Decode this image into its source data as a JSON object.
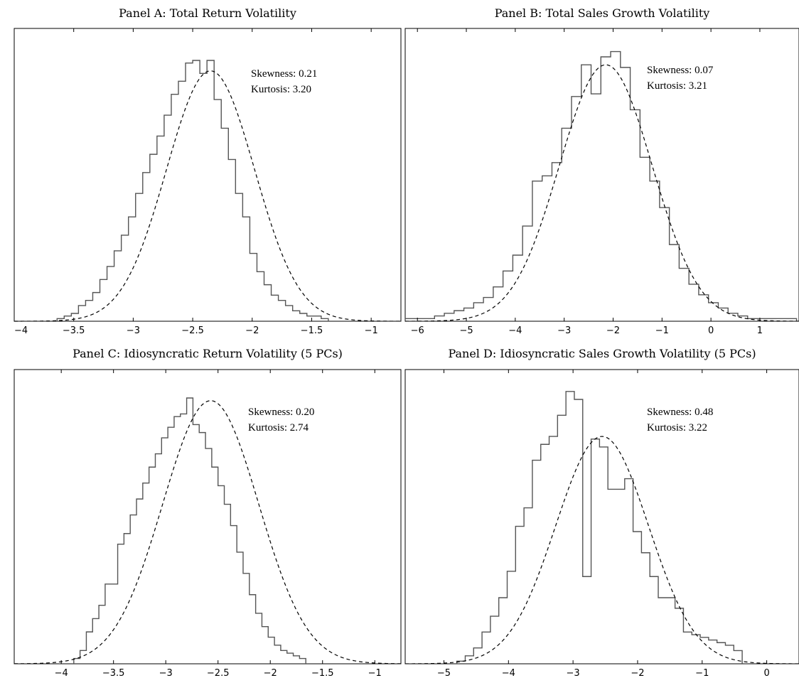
{
  "chart_data": [
    {
      "type": "histogram",
      "title": "Panel A: Total Return Volatility",
      "xlim": [
        -4,
        -0.75
      ],
      "xticks": [
        -4,
        -3.5,
        -3,
        -2.5,
        -2,
        -1.5,
        -1
      ],
      "xtick_labels": [
        "−4",
        "−3.5",
        "−3",
        "−2.5",
        "−2",
        "−1.5",
        "−1"
      ],
      "bin_start": -3.64,
      "bin_width": 0.06,
      "histogram": [
        0.01,
        0.02,
        0.03,
        0.06,
        0.08,
        0.11,
        0.16,
        0.21,
        0.27,
        0.33,
        0.4,
        0.49,
        0.57,
        0.64,
        0.71,
        0.79,
        0.87,
        0.92,
        0.99,
        1.0,
        0.95,
        1.0,
        0.85,
        0.74,
        0.62,
        0.49,
        0.4,
        0.26,
        0.19,
        0.14,
        0.1,
        0.08,
        0.06,
        0.04,
        0.03,
        0.02,
        0.02,
        0.01
      ],
      "fit": {
        "type": "normal",
        "mean": -2.35,
        "sd": 0.37,
        "peak": 0.96,
        "style": "dashed"
      },
      "annotations": {
        "skewness": "Skewness: 0.21",
        "kurtosis": "Kurtosis: 3.20"
      }
    },
    {
      "type": "histogram",
      "title": "Panel B: Total Sales Growth Volatility",
      "xlim": [
        -6.25,
        1.8
      ],
      "xticks": [
        -6,
        -5,
        -4,
        -3,
        -2,
        -1,
        0,
        1
      ],
      "xtick_labels": [
        "−6",
        "−5",
        "−4",
        "−3",
        "−2",
        "−1",
        "0",
        "1"
      ],
      "bin_start": -6.25,
      "bin_width": 0.2,
      "histogram": [
        0.01,
        0.01,
        0.01,
        0.02,
        0.03,
        0.04,
        0.05,
        0.07,
        0.09,
        0.13,
        0.19,
        0.25,
        0.36,
        0.53,
        0.55,
        0.6,
        0.73,
        0.85,
        0.97,
        0.86,
        1.0,
        1.02,
        0.96,
        0.8,
        0.62,
        0.53,
        0.43,
        0.29,
        0.2,
        0.14,
        0.1,
        0.07,
        0.05,
        0.03,
        0.02,
        0.01,
        0.01,
        0.01,
        0.01,
        0.01
      ],
      "fit": {
        "type": "normal",
        "mean": -2.15,
        "sd": 0.95,
        "peak": 0.97,
        "style": "dashed"
      },
      "annotations": {
        "skewness": "Skewness: 0.07",
        "kurtosis": "Kurtosis: 3.21"
      }
    },
    {
      "type": "histogram",
      "title": "Panel C: Idiosyncratic Return Volatility (5 PCs)",
      "xlim": [
        -4.45,
        -0.75
      ],
      "xticks": [
        -4,
        -3.5,
        -3,
        -2.5,
        -2,
        -1.5,
        -1
      ],
      "xtick_labels": [
        "−4",
        "−3.5",
        "−3",
        "−2.5",
        "−2",
        "−1.5",
        "−1"
      ],
      "bin_start": -3.88,
      "bin_width": 0.06,
      "histogram": [
        0.02,
        0.05,
        0.12,
        0.17,
        0.22,
        0.3,
        0.3,
        0.45,
        0.49,
        0.56,
        0.62,
        0.68,
        0.74,
        0.79,
        0.85,
        0.89,
        0.93,
        0.94,
        1.0,
        0.9,
        0.87,
        0.81,
        0.74,
        0.67,
        0.6,
        0.52,
        0.42,
        0.34,
        0.26,
        0.19,
        0.14,
        0.1,
        0.07,
        0.05,
        0.04,
        0.03,
        0.02
      ],
      "fit": {
        "type": "normal",
        "mean": -2.57,
        "sd": 0.46,
        "peak": 0.99,
        "style": "dashed"
      },
      "annotations": {
        "skewness": "Skewness: 0.20",
        "kurtosis": "Kurtosis: 2.74"
      }
    },
    {
      "type": "histogram",
      "title": "Panel D: Idiosyncratic Sales Growth Volatility (5 PCs)",
      "xlim": [
        -5.6,
        0.5
      ],
      "xticks": [
        -5,
        -4,
        -3,
        -2,
        -1,
        0
      ],
      "xtick_labels": [
        "−5",
        "−4",
        "−3",
        "−2",
        "−1",
        "0"
      ],
      "bin_start": -4.8,
      "bin_width": 0.13,
      "histogram": [
        0.01,
        0.03,
        0.06,
        0.12,
        0.18,
        0.25,
        0.35,
        0.52,
        0.59,
        0.77,
        0.83,
        0.86,
        0.94,
        1.03,
        1.0,
        0.33,
        0.85,
        0.82,
        0.66,
        0.66,
        0.7,
        0.5,
        0.42,
        0.33,
        0.25,
        0.25,
        0.21,
        0.12,
        0.11,
        0.1,
        0.09,
        0.08,
        0.07,
        0.05
      ],
      "fit": {
        "type": "normal",
        "mean": -2.55,
        "sd": 0.72,
        "peak": 0.86,
        "style": "dashed"
      },
      "annotations": {
        "skewness": "Skewness: 0.48",
        "kurtosis": "Kurtosis: 3.22"
      }
    }
  ]
}
